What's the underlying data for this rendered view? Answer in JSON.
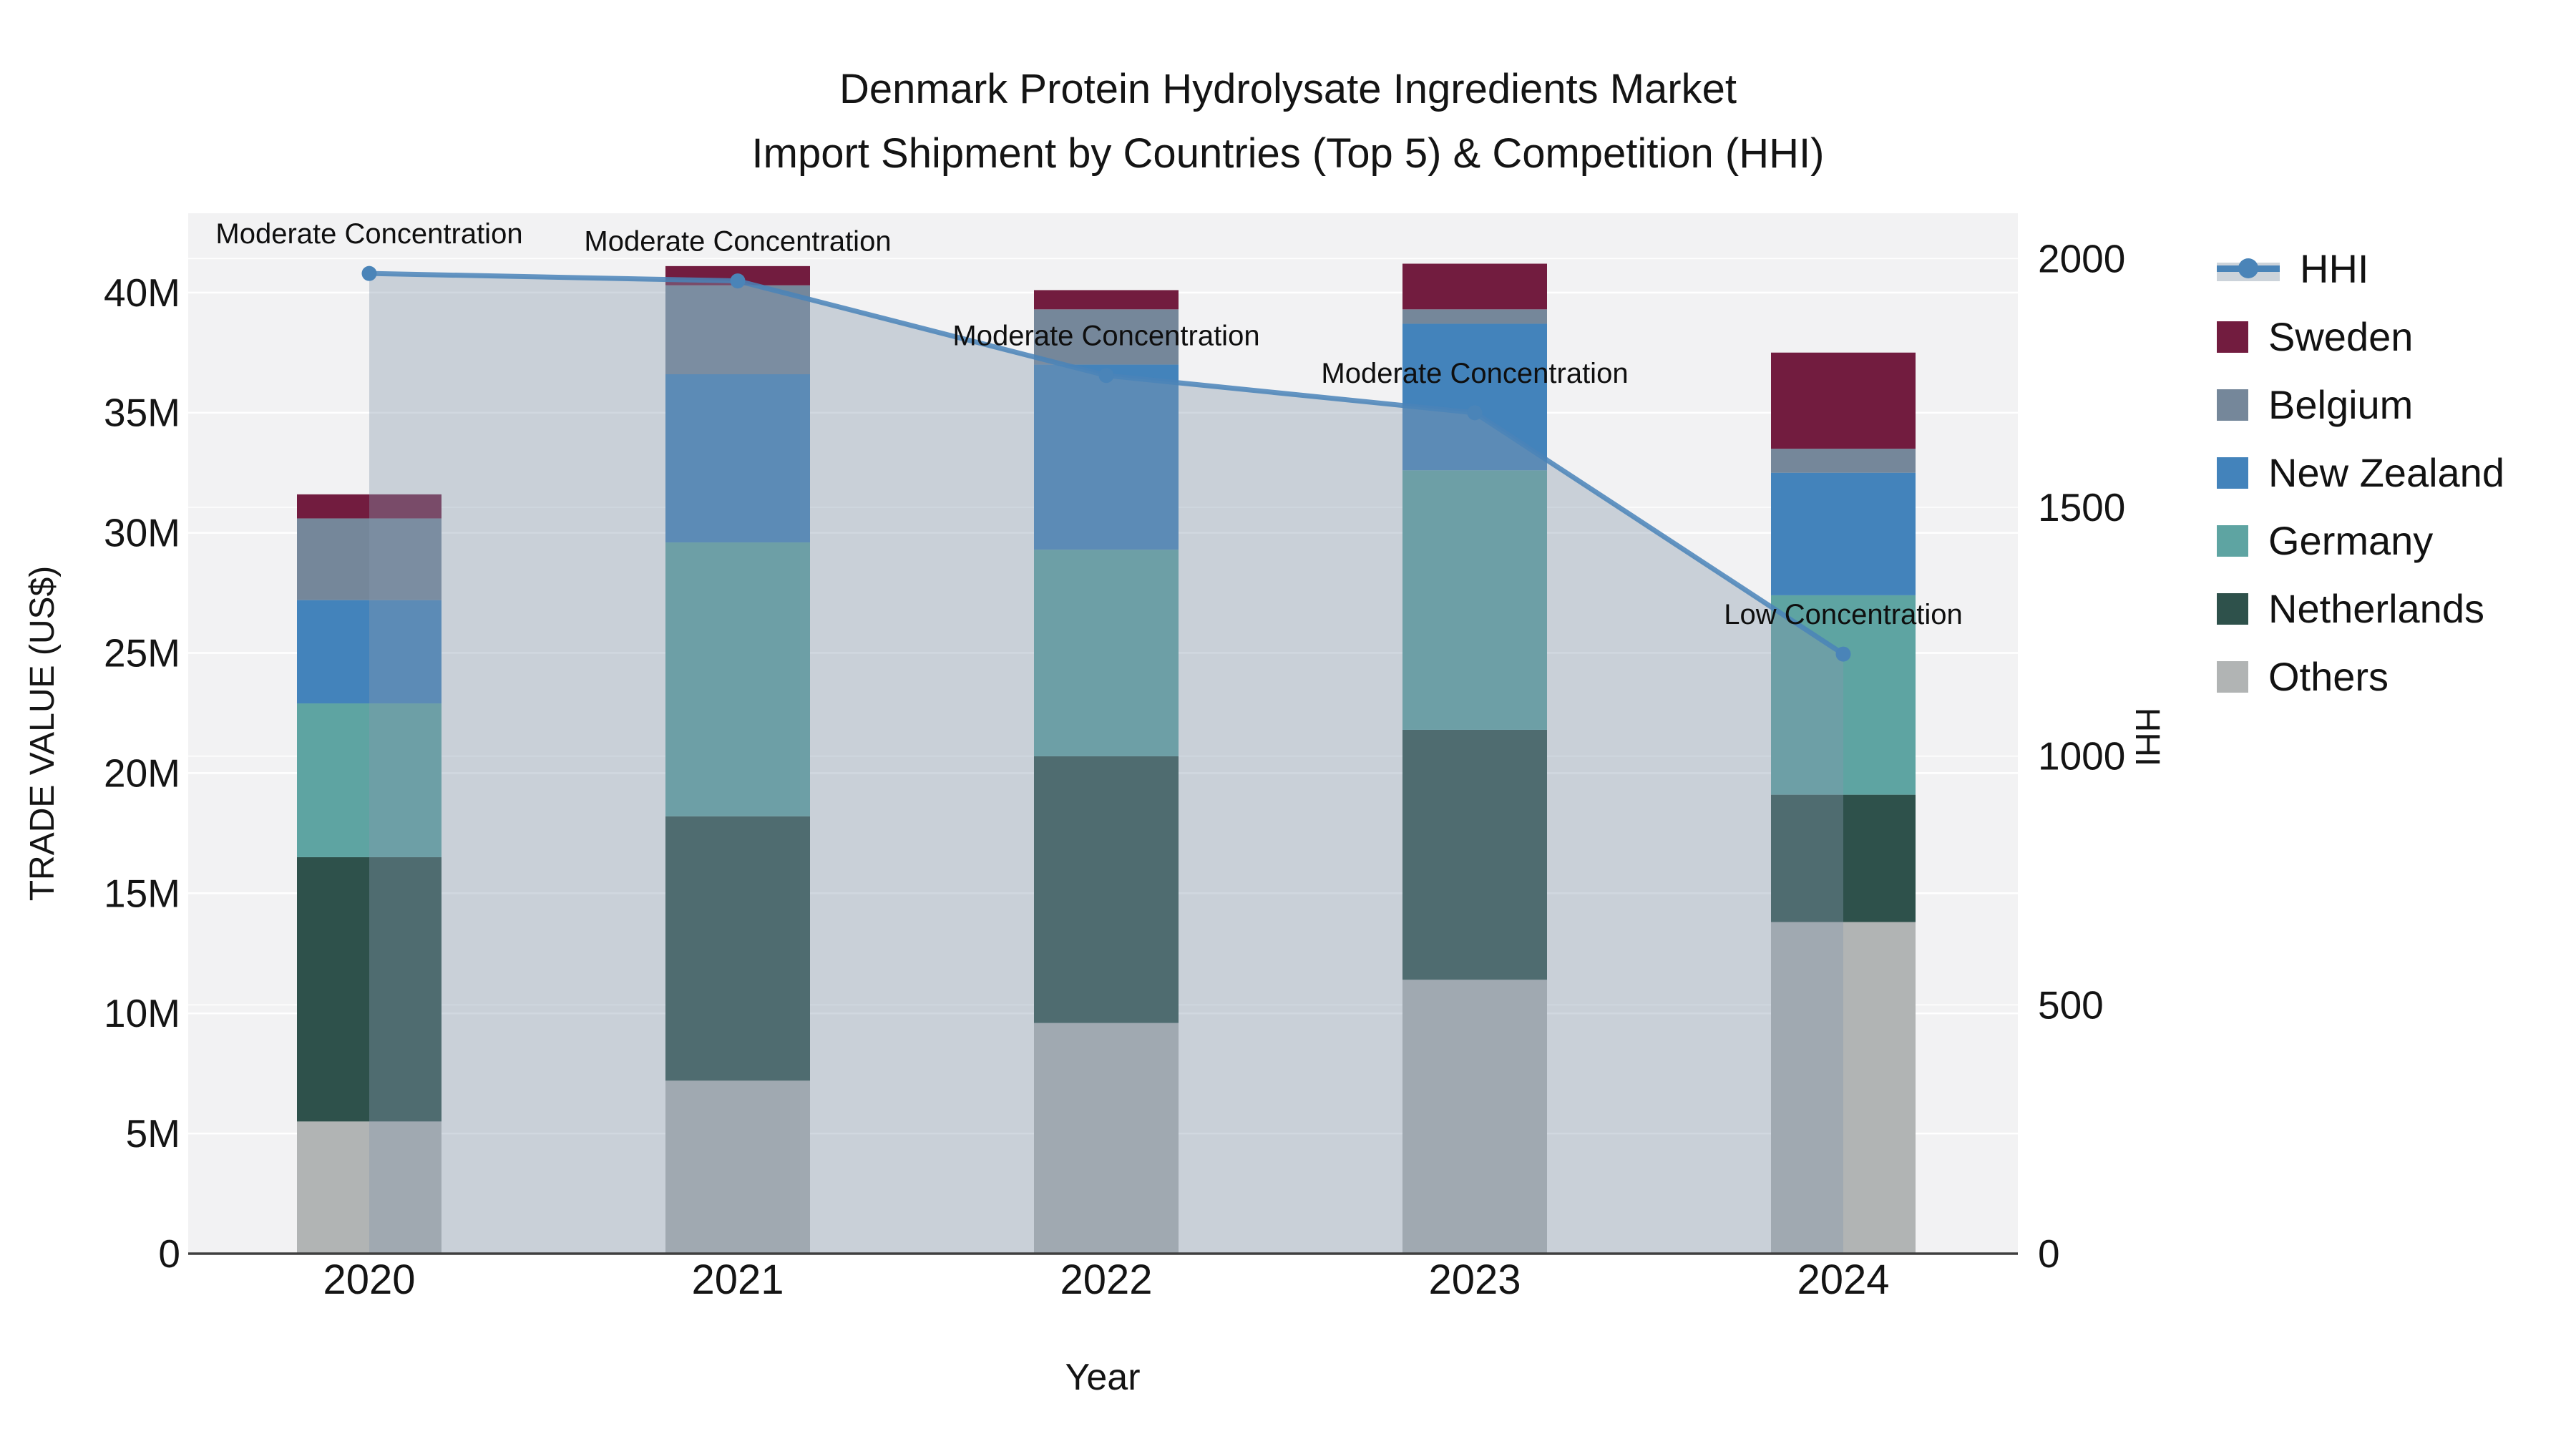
{
  "title": {
    "line1": "Denmark Protein Hydrolysate Ingredients Market",
    "line2": "Import Shipment by Countries (Top 5) & Competition (HHI)"
  },
  "axis_titles": {
    "y_left": "TRADE VALUE (US$)",
    "y_right": "HHI",
    "x": "Year"
  },
  "legend": {
    "items": [
      {
        "label": "HHI",
        "type": "line",
        "color": "#4a84b8",
        "band": "#ccd3da"
      },
      {
        "label": "Sweden",
        "type": "box",
        "color": "#721c3f"
      },
      {
        "label": "Belgium",
        "type": "box",
        "color": "#75879a"
      },
      {
        "label": "New Zealand",
        "type": "box",
        "color": "#4383bb"
      },
      {
        "label": "Germany",
        "type": "box",
        "color": "#5ea4a2"
      },
      {
        "label": "Netherlands",
        "type": "box",
        "color": "#2e514b"
      },
      {
        "label": "Others",
        "type": "box",
        "color": "#b1b4b4"
      }
    ]
  },
  "chart_data": {
    "type": "combo-stacked-bar-line",
    "categories": [
      "2020",
      "2021",
      "2022",
      "2023",
      "2024"
    ],
    "bar_value_unit": "million US$",
    "series": [
      {
        "name": "Others",
        "color": "#b1b4b4",
        "values": [
          5.5,
          7.2,
          9.6,
          11.4,
          13.8
        ]
      },
      {
        "name": "Netherlands",
        "color": "#2e514b",
        "values": [
          11.0,
          11.0,
          11.1,
          10.4,
          5.3
        ]
      },
      {
        "name": "Germany",
        "color": "#5ea4a2",
        "values": [
          6.4,
          11.4,
          8.6,
          10.8,
          8.3
        ]
      },
      {
        "name": "New Zealand",
        "color": "#4383bb",
        "values": [
          4.3,
          7.0,
          7.7,
          6.1,
          5.1
        ]
      },
      {
        "name": "Belgium",
        "color": "#75879a",
        "values": [
          3.4,
          3.7,
          2.3,
          0.6,
          1.0
        ]
      },
      {
        "name": "Sweden",
        "color": "#721c3f",
        "values": [
          1.0,
          0.8,
          0.8,
          1.9,
          4.0
        ]
      }
    ],
    "line": {
      "name": "HHI",
      "color": "#4a84b8",
      "fill_color": "rgba(133,153,173,0.38)",
      "values": [
        1970,
        1955,
        1765,
        1690,
        1205
      ]
    },
    "annotations": [
      "Moderate Concentration",
      "Moderate Concentration",
      "Moderate Concentration",
      "Moderate Concentration",
      "Low Concentration"
    ],
    "y_left": {
      "ticks": [
        "0",
        "5M",
        "10M",
        "15M",
        "20M",
        "25M",
        "30M",
        "35M",
        "40M"
      ],
      "tick_values": [
        0,
        5,
        10,
        15,
        20,
        25,
        30,
        35,
        40
      ],
      "range": [
        0,
        43.3
      ]
    },
    "y_right": {
      "ticks": [
        "0",
        "500",
        "1000",
        "1500",
        "2000"
      ],
      "tick_values": [
        0,
        500,
        1000,
        1500,
        2000
      ],
      "range": [
        0,
        2091
      ]
    },
    "xlabel": "Year",
    "grid": true,
    "legend_position": "right",
    "plot_background": "#f2f2f3"
  }
}
